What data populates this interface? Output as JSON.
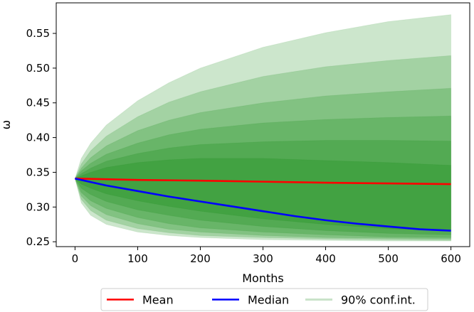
{
  "chart_data": {
    "type": "area",
    "title": "",
    "xlabel": "Months",
    "ylabel": "ω",
    "xlim": [
      -30,
      630
    ],
    "ylim": [
      0.243,
      0.594
    ],
    "x_ticks": [
      0,
      100,
      200,
      300,
      400,
      500,
      600
    ],
    "y_ticks": [
      0.25,
      0.3,
      0.35,
      0.4,
      0.45,
      0.5,
      0.55
    ],
    "x_tick_labels": [
      "0",
      "100",
      "200",
      "300",
      "400",
      "500",
      "600"
    ],
    "y_tick_labels": [
      "0.25",
      "0.30",
      "0.35",
      "0.40",
      "0.45",
      "0.50",
      "0.55"
    ],
    "grid": false,
    "legend": {
      "placement": "bottom-center-outside",
      "entries": [
        {
          "label": "Mean",
          "color": "#ff0000"
        },
        {
          "label": "Median",
          "color": "#0000ff"
        },
        {
          "label": "90% conf.int.",
          "color": "#c9e3c9"
        }
      ]
    },
    "series": [
      {
        "name": "Mean",
        "color": "#ff0000",
        "x": [
          0,
          100,
          200,
          300,
          400,
          500,
          600
        ],
        "values": [
          0.341,
          0.339,
          0.338,
          0.3365,
          0.335,
          0.334,
          0.333
        ]
      },
      {
        "name": "Median",
        "color": "#0000ff",
        "x": [
          0,
          50,
          100,
          150,
          200,
          250,
          300,
          350,
          400,
          450,
          500,
          550,
          600
        ],
        "values": [
          0.341,
          0.331,
          0.323,
          0.315,
          0.308,
          0.301,
          0.294,
          0.287,
          0.281,
          0.276,
          0.272,
          0.268,
          0.266
        ]
      }
    ],
    "confidence_band_color": "#008000",
    "confidence_bands": {
      "x": [
        0,
        10,
        25,
        50,
        100,
        150,
        200,
        300,
        400,
        500,
        600
      ],
      "upper": [
        [
          0.341,
          0.37,
          0.392,
          0.418,
          0.453,
          0.479,
          0.5,
          0.53,
          0.551,
          0.567,
          0.577
        ],
        [
          0.341,
          0.362,
          0.381,
          0.402,
          0.43,
          0.451,
          0.466,
          0.488,
          0.502,
          0.511,
          0.518
        ],
        [
          0.341,
          0.356,
          0.371,
          0.388,
          0.41,
          0.425,
          0.436,
          0.45,
          0.46,
          0.466,
          0.471
        ],
        [
          0.341,
          0.352,
          0.363,
          0.376,
          0.392,
          0.404,
          0.412,
          0.421,
          0.426,
          0.429,
          0.431
        ],
        [
          0.341,
          0.348,
          0.356,
          0.366,
          0.377,
          0.385,
          0.39,
          0.394,
          0.396,
          0.396,
          0.395
        ],
        [
          0.341,
          0.345,
          0.35,
          0.357,
          0.364,
          0.368,
          0.37,
          0.37,
          0.367,
          0.364,
          0.36
        ]
      ],
      "lower": [
        [
          0.341,
          0.306,
          0.288,
          0.275,
          0.264,
          0.259,
          0.256,
          0.253,
          0.252,
          0.251,
          0.251
        ],
        [
          0.341,
          0.311,
          0.295,
          0.281,
          0.269,
          0.263,
          0.259,
          0.256,
          0.254,
          0.253,
          0.252
        ],
        [
          0.341,
          0.316,
          0.302,
          0.289,
          0.276,
          0.268,
          0.264,
          0.259,
          0.256,
          0.255,
          0.254
        ],
        [
          0.341,
          0.321,
          0.309,
          0.298,
          0.285,
          0.276,
          0.27,
          0.264,
          0.26,
          0.257,
          0.256
        ],
        [
          0.341,
          0.327,
          0.318,
          0.308,
          0.296,
          0.288,
          0.281,
          0.272,
          0.266,
          0.262,
          0.26
        ],
        [
          0.341,
          0.333,
          0.327,
          0.319,
          0.309,
          0.301,
          0.294,
          0.283,
          0.275,
          0.269,
          0.265
        ]
      ]
    }
  }
}
